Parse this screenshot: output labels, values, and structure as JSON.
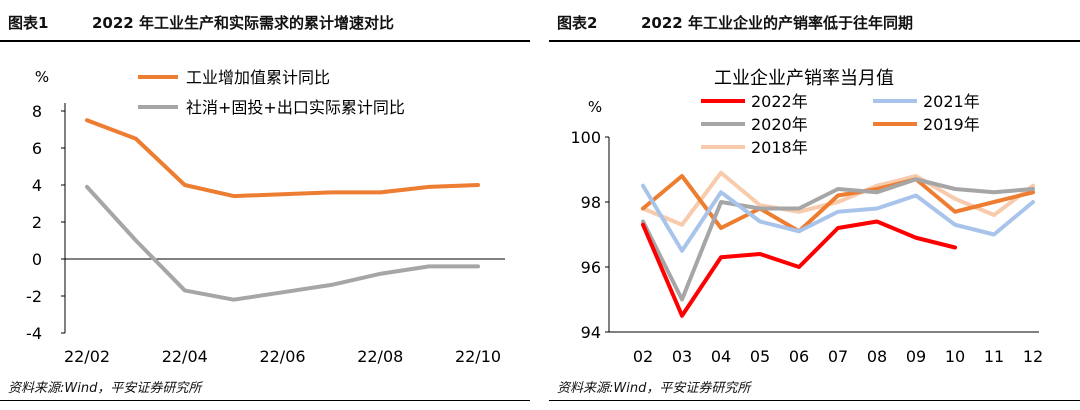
{
  "left_panel": {
    "fig_label": "图表1",
    "fig_title": "2022 年工业生产和实际需求的累计增速对比",
    "source": "资料来源:Wind，平安证券研究所"
  },
  "right_panel": {
    "fig_label": "图表2",
    "fig_title": "2022 年工业企业的产销率低于往年同期",
    "source": "资料来源:Wind，平安证券研究所"
  },
  "chart_data": [
    {
      "type": "line",
      "title": "",
      "xlabel": "",
      "ylabel": "%",
      "ylim": [
        -4,
        8
      ],
      "yticks": [
        "8",
        "6",
        "4",
        "2",
        "0",
        "-2",
        "-4"
      ],
      "x_tick_labels": [
        "22/02",
        "22/04",
        "22/06",
        "22/08",
        "22/10"
      ],
      "x": [
        "22/02",
        "22/03",
        "22/04",
        "22/05",
        "22/06",
        "22/07",
        "22/08",
        "22/09",
        "22/10"
      ],
      "legend_position": "top",
      "series": [
        {
          "name": "工业增加值累计同比",
          "color": "#ED7D31",
          "values": [
            7.5,
            6.5,
            4.0,
            3.4,
            3.5,
            3.6,
            3.6,
            3.9,
            4.0
          ]
        },
        {
          "name": "社消+固投+出口实际累计同比",
          "color": "#A6A6A6",
          "values": [
            3.9,
            1.0,
            -1.7,
            -2.2,
            -1.8,
            -1.4,
            -0.8,
            -0.4,
            -0.4
          ]
        }
      ]
    },
    {
      "type": "line",
      "title": "工业企业产销率当月值",
      "xlabel": "",
      "ylabel": "%",
      "ylim": [
        94,
        100
      ],
      "yticks": [
        "100",
        "98",
        "96",
        "94"
      ],
      "x_tick_labels": [
        "02",
        "03",
        "04",
        "05",
        "06",
        "07",
        "08",
        "09",
        "10",
        "11",
        "12"
      ],
      "x": [
        "02",
        "03",
        "04",
        "05",
        "06",
        "07",
        "08",
        "09",
        "10",
        "11",
        "12"
      ],
      "legend_position": "top",
      "series": [
        {
          "name": "2022年",
          "color": "#FF0000",
          "values": [
            97.3,
            94.5,
            96.3,
            96.4,
            96.0,
            97.2,
            97.4,
            96.9,
            96.6,
            null,
            null
          ]
        },
        {
          "name": "2021年",
          "color": "#A9C4EB",
          "values": [
            98.5,
            96.5,
            98.3,
            97.4,
            97.1,
            97.7,
            97.8,
            98.2,
            97.3,
            97.0,
            98.0
          ]
        },
        {
          "name": "2020年",
          "color": "#A6A6A6",
          "values": [
            97.4,
            95.0,
            98.0,
            97.8,
            97.8,
            98.4,
            98.3,
            98.7,
            98.4,
            98.3,
            98.4
          ]
        },
        {
          "name": "2019年",
          "color": "#ED7D31",
          "values": [
            97.8,
            98.8,
            97.2,
            97.8,
            97.1,
            98.2,
            98.4,
            98.7,
            97.7,
            98.0,
            98.3
          ]
        },
        {
          "name": "2018年",
          "color": "#F8CBAD",
          "values": [
            97.8,
            97.3,
            98.9,
            97.9,
            97.7,
            98.0,
            98.5,
            98.8,
            98.1,
            97.6,
            98.5
          ]
        }
      ]
    }
  ]
}
